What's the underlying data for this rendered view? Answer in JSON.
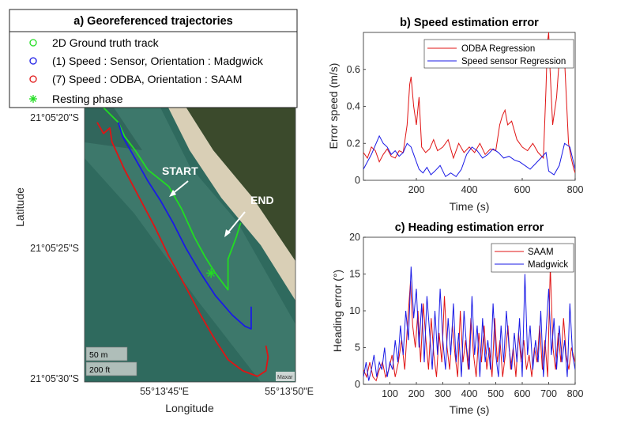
{
  "chart_data": [
    {
      "id": "a",
      "type": "scatter",
      "title": "a) Georeferenced trajectories",
      "xlabel": "Longitude",
      "ylabel": "Latitude",
      "x_ticks": [
        "55°13'45\"E",
        "55°13'50\"E"
      ],
      "y_ticks": [
        "21°05'20\"S",
        "21°05'25\"S",
        "21°05'30\"S"
      ],
      "legend_position": "top",
      "annotations": [
        "START",
        "END"
      ],
      "scale_bar": [
        "50 m",
        "200 ft"
      ],
      "attribution": "Maxar",
      "colors": {
        "ground_truth": "#22dd22",
        "madgwick": "#1a1ae6",
        "saam": "#e01414",
        "sea": "#2f6a5e",
        "sand": "#d9cfb6",
        "vegetation": "#3b4a2c"
      },
      "series": [
        {
          "name": "2D Ground truth track",
          "marker": "circle",
          "color": "#22dd22",
          "points": [
            [
              0.08,
              0.01
            ],
            [
              0.12,
              0.04
            ],
            [
              0.16,
              0.07
            ],
            [
              0.19,
              0.12
            ],
            [
              0.24,
              0.17
            ],
            [
              0.3,
              0.24
            ],
            [
              0.4,
              0.3
            ],
            [
              0.46,
              0.38
            ],
            [
              0.52,
              0.48
            ],
            [
              0.57,
              0.55
            ],
            [
              0.62,
              0.61
            ],
            [
              0.66,
              0.65
            ],
            [
              0.68,
              0.67
            ],
            [
              0.68,
              0.62
            ],
            [
              0.68,
              0.56
            ],
            [
              0.7,
              0.52
            ],
            [
              0.72,
              0.48
            ],
            [
              0.74,
              0.43
            ]
          ]
        },
        {
          "name": "(1) Speed : Sensor, Orientation : Madgwick",
          "marker": "circle",
          "color": "#1a1ae6",
          "points": [
            [
              0.16,
              0.07
            ],
            [
              0.18,
              0.12
            ],
            [
              0.24,
              0.2
            ],
            [
              0.3,
              0.28
            ],
            [
              0.36,
              0.35
            ],
            [
              0.42,
              0.43
            ],
            [
              0.48,
              0.52
            ],
            [
              0.55,
              0.61
            ],
            [
              0.62,
              0.69
            ],
            [
              0.7,
              0.76
            ],
            [
              0.76,
              0.8
            ],
            [
              0.79,
              0.81
            ],
            [
              0.79,
              0.78
            ],
            [
              0.79,
              0.73
            ]
          ]
        },
        {
          "name": "(7) Speed : ODBA, Orientation : SAAM",
          "marker": "circle",
          "color": "#e01414",
          "points": [
            [
              0.06,
              0.07
            ],
            [
              0.09,
              0.11
            ],
            [
              0.12,
              0.09
            ],
            [
              0.13,
              0.14
            ],
            [
              0.19,
              0.24
            ],
            [
              0.26,
              0.34
            ],
            [
              0.33,
              0.44
            ],
            [
              0.4,
              0.55
            ],
            [
              0.48,
              0.66
            ],
            [
              0.55,
              0.76
            ],
            [
              0.62,
              0.85
            ],
            [
              0.68,
              0.92
            ],
            [
              0.75,
              0.96
            ],
            [
              0.82,
              0.98
            ],
            [
              0.86,
              0.96
            ],
            [
              0.87,
              0.91
            ],
            [
              0.86,
              0.87
            ]
          ]
        },
        {
          "name": "Resting phase",
          "marker": "asterisk",
          "color": "#22dd22",
          "points": [
            [
              0.6,
              0.61
            ]
          ]
        }
      ]
    },
    {
      "id": "b",
      "type": "line",
      "title": "b) Speed estimation error",
      "xlabel": "Time (s)",
      "ylabel": "Error speed (m/s)",
      "xlim": [
        0,
        800
      ],
      "ylim": [
        0,
        0.8
      ],
      "x_ticks": [
        200,
        400,
        600,
        800
      ],
      "y_ticks": [
        0,
        0.2,
        0.4,
        0.6
      ],
      "legend_position": "top-right",
      "series": [
        {
          "name": "ODBA Regression",
          "color": "#e01414",
          "x": [
            0,
            15,
            30,
            45,
            60,
            75,
            90,
            105,
            120,
            135,
            150,
            165,
            175,
            180,
            190,
            200,
            210,
            220,
            235,
            250,
            265,
            280,
            300,
            320,
            340,
            360,
            380,
            400,
            420,
            440,
            460,
            480,
            500,
            515,
            525,
            535,
            545,
            560,
            580,
            600,
            620,
            640,
            660,
            680,
            690,
            695,
            700,
            705,
            715,
            730,
            745,
            760,
            775,
            785,
            795,
            800
          ],
          "y": [
            0.15,
            0.12,
            0.18,
            0.16,
            0.1,
            0.14,
            0.17,
            0.13,
            0.12,
            0.16,
            0.15,
            0.3,
            0.52,
            0.56,
            0.4,
            0.3,
            0.45,
            0.18,
            0.15,
            0.17,
            0.22,
            0.16,
            0.18,
            0.22,
            0.12,
            0.2,
            0.15,
            0.18,
            0.15,
            0.2,
            0.14,
            0.17,
            0.16,
            0.3,
            0.35,
            0.38,
            0.3,
            0.32,
            0.22,
            0.18,
            0.16,
            0.2,
            0.15,
            0.12,
            0.5,
            0.74,
            0.8,
            0.6,
            0.3,
            0.45,
            0.76,
            0.65,
            0.2,
            0.12,
            0.06,
            0.04
          ]
        },
        {
          "name": "Speed sensor Regression",
          "color": "#1a1ae6",
          "x": [
            0,
            15,
            30,
            45,
            60,
            75,
            90,
            105,
            120,
            135,
            150,
            165,
            180,
            195,
            210,
            225,
            240,
            255,
            270,
            290,
            310,
            330,
            350,
            370,
            390,
            410,
            430,
            450,
            470,
            490,
            510,
            530,
            550,
            570,
            590,
            610,
            630,
            650,
            670,
            690,
            700,
            720,
            740,
            760,
            780,
            800
          ],
          "y": [
            0.06,
            0.1,
            0.14,
            0.19,
            0.24,
            0.2,
            0.18,
            0.14,
            0.16,
            0.13,
            0.15,
            0.2,
            0.18,
            0.12,
            0.06,
            0.04,
            0.07,
            0.03,
            0.05,
            0.08,
            0.02,
            0.04,
            0.02,
            0.06,
            0.14,
            0.18,
            0.16,
            0.12,
            0.14,
            0.17,
            0.15,
            0.12,
            0.13,
            0.11,
            0.1,
            0.08,
            0.06,
            0.09,
            0.12,
            0.15,
            0.05,
            0.03,
            0.08,
            0.2,
            0.18,
            0.06
          ]
        }
      ]
    },
    {
      "id": "c",
      "type": "line",
      "title": "c) Heading estimation error",
      "xlabel": "Time (s)",
      "ylabel": "Heading error (°)",
      "xlim": [
        0,
        800
      ],
      "ylim": [
        0,
        20
      ],
      "x_ticks": [
        100,
        200,
        300,
        400,
        500,
        600,
        700,
        800
      ],
      "y_ticks": [
        0,
        5,
        10,
        15,
        20
      ],
      "legend_position": "top-right",
      "series": [
        {
          "name": "SAAM",
          "color": "#e01414",
          "x": [
            0,
            12,
            24,
            36,
            48,
            60,
            72,
            84,
            96,
            108,
            120,
            132,
            144,
            156,
            168,
            178,
            186,
            196,
            206,
            216,
            226,
            236,
            246,
            256,
            266,
            276,
            286,
            296,
            306,
            316,
            326,
            336,
            346,
            356,
            366,
            376,
            386,
            396,
            406,
            416,
            426,
            436,
            446,
            456,
            466,
            476,
            486,
            496,
            506,
            516,
            526,
            536,
            546,
            556,
            566,
            576,
            586,
            596,
            606,
            616,
            626,
            636,
            646,
            656,
            666,
            676,
            686,
            696,
            706,
            716,
            726,
            736,
            746,
            756,
            766,
            776,
            786,
            800
          ],
          "y": [
            2,
            1,
            3,
            1,
            0.5,
            2,
            3,
            1,
            2,
            4,
            1,
            3,
            6,
            2,
            9,
            14,
            8,
            5,
            10,
            3,
            11,
            6,
            2,
            9,
            4,
            1,
            7,
            3,
            12,
            5,
            2,
            8,
            4,
            1,
            10,
            3,
            6,
            2,
            9,
            4,
            1,
            7,
            3,
            8,
            2,
            5,
            1,
            9,
            3,
            6,
            1,
            4,
            8,
            2,
            5,
            1,
            7,
            3,
            6,
            2,
            4,
            1,
            5,
            3,
            8,
            2,
            6,
            1,
            16,
            5,
            2,
            7,
            3,
            9,
            4,
            2,
            5,
            3
          ]
        },
        {
          "name": "Madgwick",
          "color": "#1a1ae6",
          "x": [
            0,
            10,
            20,
            30,
            40,
            50,
            60,
            70,
            80,
            90,
            100,
            110,
            120,
            130,
            140,
            150,
            160,
            170,
            180,
            190,
            200,
            210,
            220,
            230,
            240,
            250,
            260,
            270,
            280,
            290,
            300,
            310,
            320,
            330,
            340,
            350,
            360,
            370,
            380,
            390,
            400,
            410,
            420,
            430,
            440,
            450,
            460,
            470,
            480,
            490,
            500,
            510,
            520,
            530,
            540,
            550,
            560,
            570,
            580,
            590,
            600,
            610,
            620,
            630,
            640,
            650,
            660,
            670,
            680,
            690,
            700,
            710,
            720,
            730,
            740,
            750,
            760,
            770,
            780,
            790,
            800
          ],
          "y": [
            1,
            3,
            0.5,
            2,
            4,
            1,
            3,
            2,
            5,
            1,
            3,
            2,
            6,
            3,
            8,
            4,
            10,
            6,
            16,
            9,
            13,
            5,
            11,
            3,
            12,
            7,
            2,
            10,
            4,
            13,
            6,
            2,
            9,
            4,
            11,
            3,
            7,
            1,
            10,
            5,
            2,
            12,
            4,
            8,
            1,
            9,
            3,
            6,
            2,
            11,
            4,
            1,
            8,
            3,
            10,
            5,
            2,
            7,
            3,
            9,
            1,
            15,
            4,
            8,
            2,
            6,
            3,
            10,
            1,
            7,
            13,
            4,
            9,
            2,
            8,
            3,
            6,
            1,
            11,
            4,
            2
          ]
        }
      ]
    }
  ]
}
